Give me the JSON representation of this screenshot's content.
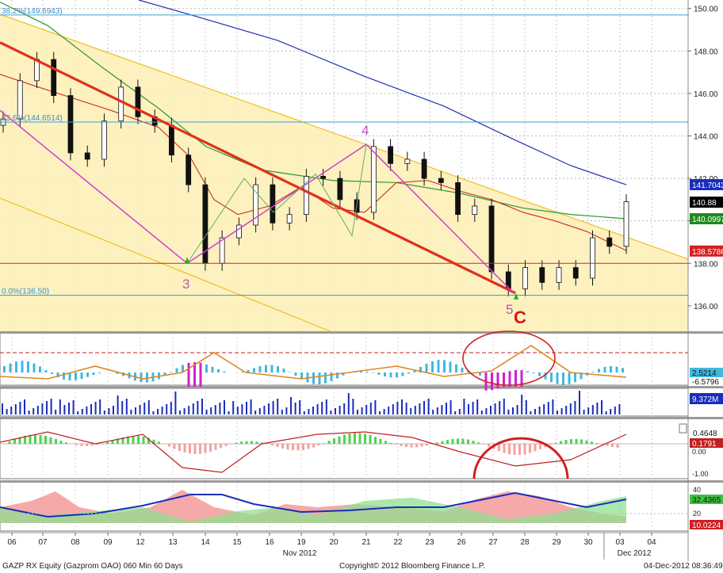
{
  "chart_data": {
    "type": "candlestick",
    "xlabel": "Nov 2012",
    "x_ticks": [
      "06",
      "07",
      "08",
      "09",
      "12",
      "13",
      "14",
      "15",
      "16",
      "19",
      "20",
      "21",
      "22",
      "23",
      "26",
      "27",
      "28",
      "29",
      "30",
      "03",
      "04"
    ],
    "x_month_labels": [
      "Nov 2012",
      "Dec 2012"
    ],
    "ylim": [
      134.8,
      150.4
    ],
    "y_ticks": [
      "136.00",
      "138.00",
      "140.00",
      "142.00",
      "144.00",
      "146.00",
      "148.00",
      "150.00"
    ],
    "price_tags": [
      {
        "label": "141.7043",
        "value": 141.7043,
        "color": "#1a2dbb"
      },
      {
        "label": "140.88",
        "value": 140.88,
        "color": "#000000"
      },
      {
        "label": "140.0997",
        "value": 140.0997,
        "color": "#1e8a1e"
      },
      {
        "label": "138.5786",
        "value": 138.5786,
        "color": "#d62020"
      }
    ],
    "fib_levels": [
      {
        "label": "38.2%(149.6943)",
        "value": 149.6943
      },
      {
        "label": "23.6%(144.6514)",
        "value": 144.6514
      },
      {
        "label": "0.0%(136.50)",
        "value": 136.5
      }
    ],
    "horizontal_lines": [
      138.0
    ],
    "wave_labels": [
      {
        "label": "3",
        "color": "#c050c0"
      },
      {
        "label": "4",
        "color": "#c050c0"
      },
      {
        "label": "5",
        "color": "#c050c0"
      },
      {
        "label": "C",
        "color": "#e01010"
      }
    ],
    "series": [
      {
        "name": "Close",
        "values": [
          144.8,
          146.6,
          147.6,
          145.9,
          143.2,
          142.9,
          144.7,
          146.3,
          144.9,
          144.5,
          143.1,
          141.7,
          138.0,
          139.2,
          139.8,
          141.7,
          139.9,
          140.3,
          142.1,
          142.0,
          141.0,
          140.4,
          143.5,
          142.7,
          142.9,
          142.0,
          141.8,
          140.3,
          140.7,
          137.6,
          136.8,
          137.8,
          137.1,
          137.8,
          137.3,
          139.2,
          138.8,
          140.9
        ]
      }
    ],
    "lower_panels": [
      {
        "name": "oscillator",
        "tags": [
          "2.5214",
          "-6.5796"
        ]
      },
      {
        "name": "volume",
        "tags": [
          "9.372M"
        ]
      },
      {
        "name": "macd",
        "tags": [
          "0.4648",
          "0.1791",
          "0.00",
          "-1.00"
        ]
      },
      {
        "name": "dmi",
        "ticks": [
          "40",
          "20"
        ],
        "tags": [
          "32.4365",
          "10.0224"
        ]
      }
    ]
  },
  "footer": {
    "left": "GAZP RX Equity (Gazprom OAO) 060 Min 60 Days",
    "center": "Copyright© 2012 Bloomberg Finance L.P.",
    "right": "04-Dec-2012 08:36:49"
  }
}
